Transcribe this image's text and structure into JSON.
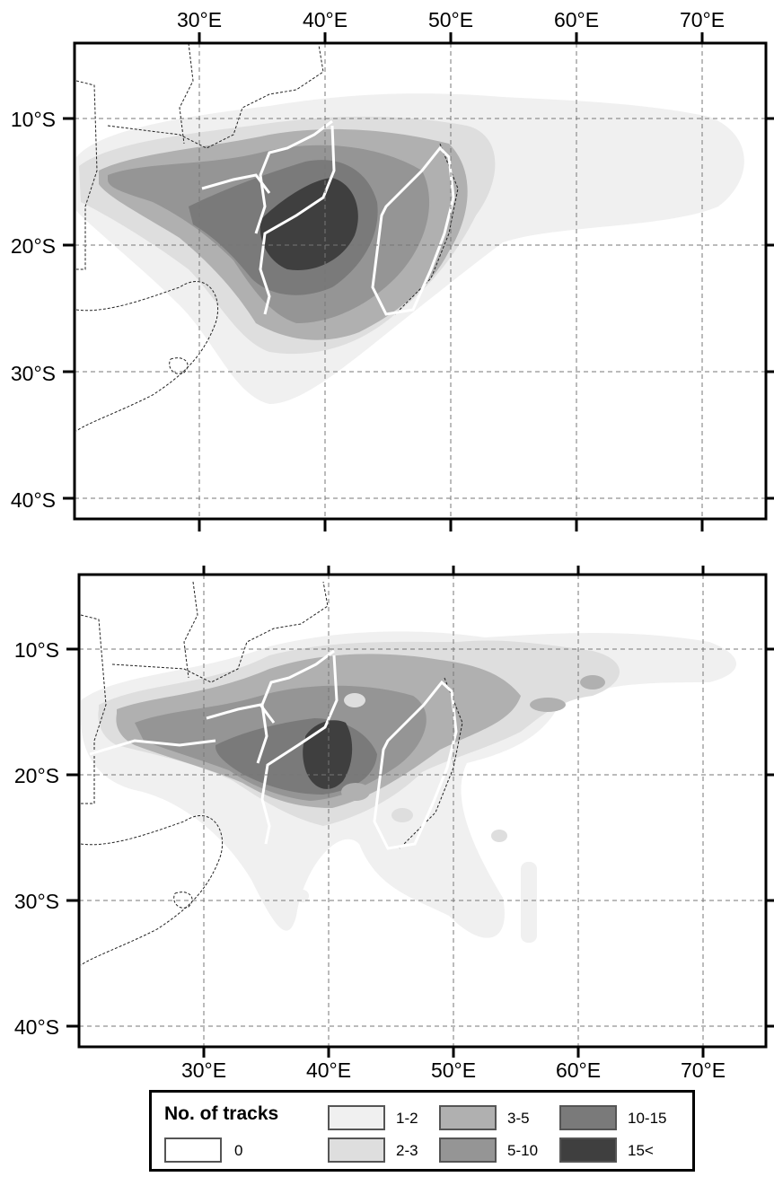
{
  "maps": [
    {
      "name": "upper-map"
    },
    {
      "name": "lower-map"
    }
  ],
  "axes": {
    "lon_labels": [
      "30°E",
      "40°E",
      "50°E",
      "60°E",
      "70°E"
    ],
    "lat_labels": [
      "10°S",
      "20°S",
      "30°S",
      "40°S"
    ]
  },
  "legend": {
    "title": "No. of tracks",
    "items": [
      {
        "label": "0",
        "color": "#ffffff"
      },
      {
        "label": "1-2",
        "color": "#f0f0f0"
      },
      {
        "label": "2-3",
        "color": "#dedede"
      },
      {
        "label": "3-5",
        "color": "#b0b0b0"
      },
      {
        "label": "5-10",
        "color": "#959595"
      },
      {
        "label": "10-15",
        "color": "#7a7a7a"
      },
      {
        "label": "15<",
        "color": "#3f3f3f"
      }
    ]
  }
}
